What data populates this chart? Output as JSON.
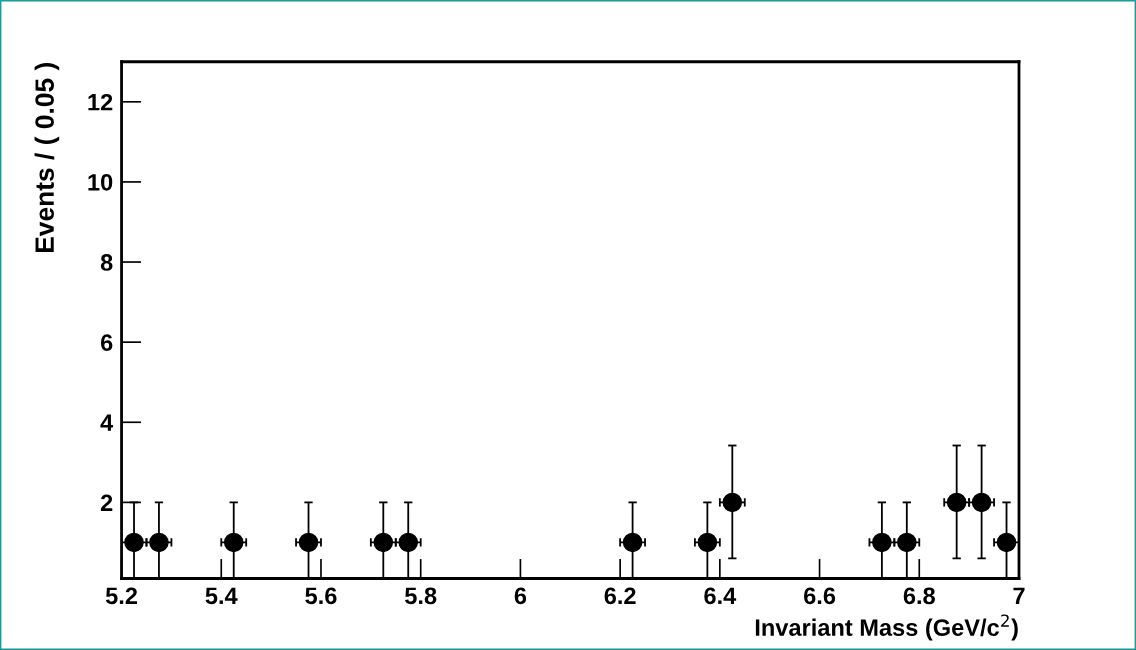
{
  "chart_data": {
    "type": "scatter",
    "xlabel": "Invariant Mass (GeV/c$^{2}$)",
    "ylabel": "Events / ( 0.05 )",
    "x": [
      5.225,
      5.275,
      5.425,
      5.575,
      5.725,
      5.775,
      6.225,
      6.375,
      6.425,
      6.725,
      6.775,
      6.875,
      6.925,
      6.975
    ],
    "values": [
      1,
      1,
      1,
      1,
      1,
      1,
      1,
      1,
      2,
      1,
      1,
      2,
      2,
      1
    ],
    "errors": [
      [
        0.1,
        2
      ],
      [
        0.1,
        2
      ],
      [
        0.1,
        2
      ],
      [
        0.1,
        2
      ],
      [
        0.1,
        2
      ],
      [
        0.1,
        2
      ],
      [
        0.1,
        2
      ],
      [
        0.1,
        2
      ],
      [
        0.6,
        3.42
      ],
      [
        0.1,
        2
      ],
      [
        0.1,
        2
      ],
      [
        0.6,
        3.42
      ],
      [
        0.6,
        3.42
      ],
      [
        0.1,
        2
      ]
    ],
    "xerrors": [
      0.025,
      0.025,
      0.025,
      0.025,
      0.025,
      0.025,
      0.025,
      0.025,
      0.025,
      0.025,
      0.025,
      0.025,
      0.025,
      0.025
    ],
    "color": "#000000",
    "marker": "circle",
    "xlim": [
      5.2,
      7
    ],
    "ylim": [
      0.1,
      13
    ],
    "xticks": [
      5.2,
      5.4,
      5.6,
      5.8,
      6,
      6.2,
      6.4,
      6.6,
      6.8,
      7
    ],
    "yticks": [
      2,
      4,
      6,
      8,
      10,
      12
    ],
    "grid": false,
    "legend": false
  }
}
